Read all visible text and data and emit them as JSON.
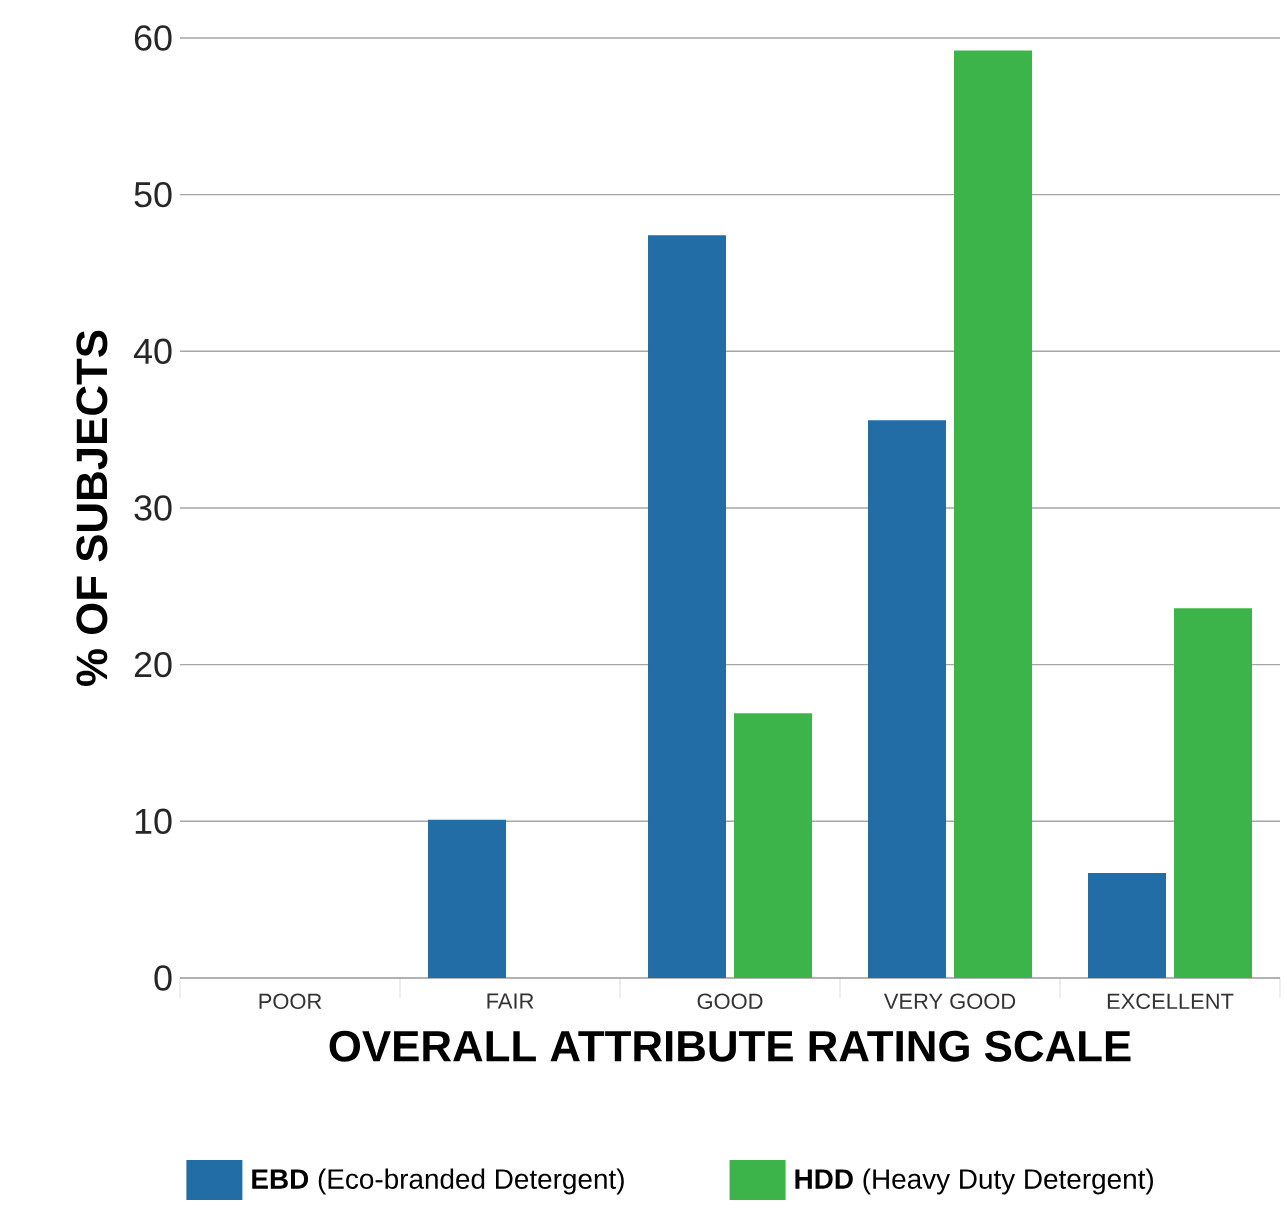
{
  "chart_data": {
    "type": "bar",
    "xlabel": "OVERALL ATTRIBUTE RATING SCALE",
    "ylabel": "% OF SUBJECTS",
    "categories": [
      "POOR",
      "FAIR",
      "GOOD",
      "VERY GOOD",
      "EXCELLENT"
    ],
    "series": [
      {
        "name": "**EBD** (Eco-branded Detergent)",
        "color": "#236da6",
        "values": [
          0,
          10.1,
          47.4,
          35.6,
          6.7
        ]
      },
      {
        "name": "**HDD** (Heavy Duty Detergent)",
        "color": "#3cb44a",
        "values": [
          0,
          0,
          16.9,
          59.2,
          23.6
        ]
      }
    ],
    "ylim": [
      0,
      60
    ],
    "yticks": [
      0,
      10,
      20,
      30,
      40,
      50,
      60
    ],
    "grid": "y",
    "legend": "bottom"
  }
}
